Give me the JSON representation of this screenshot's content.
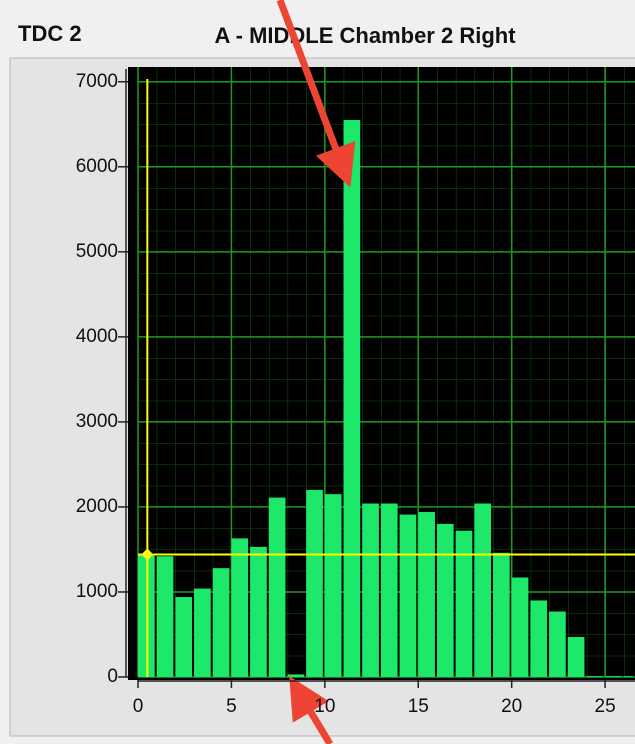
{
  "panel_label": "TDC 2",
  "chart_data": {
    "type": "histogram",
    "title": "A - MIDDLE Chamber 2 Right",
    "bins": [
      0,
      1,
      2,
      3,
      4,
      5,
      6,
      7,
      8,
      9,
      10,
      11,
      12,
      13,
      14,
      15,
      16,
      17,
      18,
      19,
      20,
      21,
      22,
      23,
      24,
      25,
      26,
      27
    ],
    "values": [
      1450,
      1420,
      940,
      1040,
      1280,
      1630,
      1530,
      2110,
      30,
      2200,
      2150,
      6550,
      2040,
      2040,
      1910,
      1940,
      1800,
      1720,
      2040,
      1460,
      1170,
      900,
      770,
      470,
      10,
      10,
      10
    ],
    "color": "#1ee86a",
    "xlim": [
      0,
      26.6
    ],
    "xticks": [
      0,
      5,
      10,
      15,
      20,
      25
    ],
    "ylim": [
      0,
      7150
    ],
    "yticks": [
      0,
      1000,
      2000,
      3000,
      4000,
      5000,
      6000,
      7000
    ],
    "grid": true,
    "grid_color": "#1f9a1f",
    "cursor": {
      "x": 0.5,
      "y": 1440,
      "color": "#ffff00"
    }
  }
}
